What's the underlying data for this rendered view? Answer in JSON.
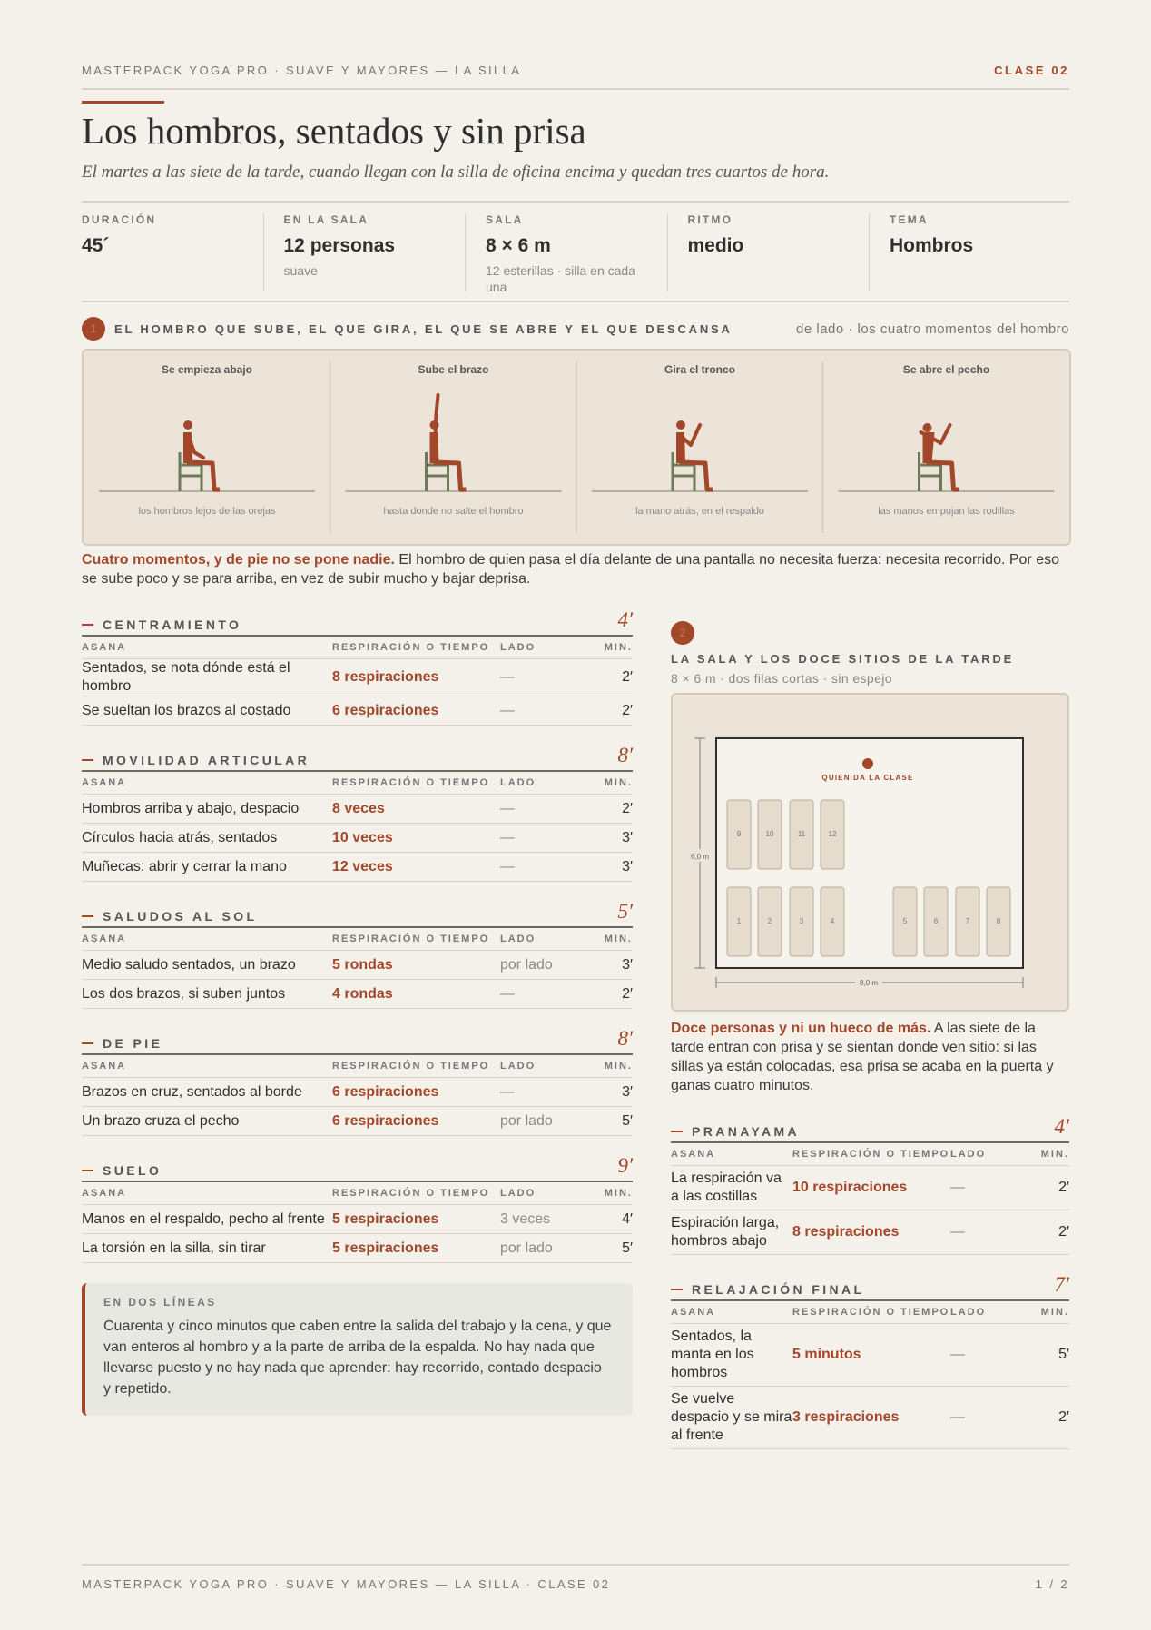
{
  "header": {
    "brand": "MASTERPACK YOGA PRO · SUAVE Y MAYORES — LA SILLA",
    "clase": "CLASE 02",
    "title": "Los hombros, sentados y sin prisa",
    "subtitle": "El martes a las siete de la tarde, cuando llegan con la silla de oficina encima y quedan tres cuartos de hora."
  },
  "stats": [
    {
      "label": "DURACIÓN",
      "value": "45´"
    },
    {
      "label": "EN LA SALA",
      "value": "12 personas",
      "note": "suave"
    },
    {
      "label": "SALA",
      "value": "8 × 6 m",
      "note": "12 esterillas · silla en cada una"
    },
    {
      "label": "RITMO",
      "value": "medio"
    },
    {
      "label": "TEMA",
      "value": "Hombros"
    }
  ],
  "section1": {
    "number": "1",
    "title": "EL HOMBRO QUE SUBE, EL QUE GIRA, EL QUE SE ABRE Y EL QUE DESCANSA",
    "aside": "de lado · los cuatro momentos del hombro",
    "panels": [
      {
        "heading": "Se empieza abajo",
        "caption": "los hombros lejos de las orejas"
      },
      {
        "heading": "Sube el brazo",
        "caption": "hasta donde no salte el hombro"
      },
      {
        "heading": "Gira el tronco",
        "caption": "la mano atrás, en el respaldo"
      },
      {
        "heading": "Se abre el pecho",
        "caption": "las manos empujan las rodillas"
      }
    ],
    "lead": "Cuatro momentos, y de pie no se pone nadie.",
    "text": "El hombro de quien pasa el día delante de una pantalla no necesita fuerza: necesita recorrido. Por eso se sube poco y se para arriba, en vez de subir mucho y bajar deprisa."
  },
  "table_headers": [
    "ASANA",
    "RESPIRACIÓN O TIEMPO",
    "LADO",
    "MIN."
  ],
  "sessions_left": [
    {
      "name": "CENTRAMIENTO",
      "minutes": "4′",
      "rows": [
        [
          "Sentados, se nota dónde está el hombro",
          "8 respiraciones",
          "—",
          "2′"
        ],
        [
          "Se sueltan los brazos al costado",
          "6 respiraciones",
          "—",
          "2′"
        ]
      ]
    },
    {
      "name": "MOVILIDAD ARTICULAR",
      "minutes": "8′",
      "rows": [
        [
          "Hombros arriba y abajo, despacio",
          "8 veces",
          "—",
          "2′"
        ],
        [
          "Círculos hacia atrás, sentados",
          "10 veces",
          "—",
          "3′"
        ],
        [
          "Muñecas: abrir y cerrar la mano",
          "12 veces",
          "—",
          "3′"
        ]
      ]
    },
    {
      "name": "SALUDOS AL SOL",
      "minutes": "5′",
      "rows": [
        [
          "Medio saludo sentados, un brazo",
          "5 rondas",
          "por lado",
          "3′"
        ],
        [
          "Los dos brazos, si suben juntos",
          "4 rondas",
          "—",
          "2′"
        ]
      ]
    },
    {
      "name": "DE PIE",
      "minutes": "8′",
      "rows": [
        [
          "Brazos en cruz, sentados al borde",
          "6 respiraciones",
          "—",
          "3′"
        ],
        [
          "Un brazo cruza el pecho",
          "6 respiraciones",
          "por lado",
          "5′"
        ]
      ]
    },
    {
      "name": "SUELO",
      "minutes": "9′",
      "rows": [
        [
          "Manos en el respaldo, pecho al frente",
          "5 respiraciones",
          "3 veces",
          "4′"
        ],
        [
          "La torsión en la silla, sin tirar",
          "5 respiraciones",
          "por lado",
          "5′"
        ]
      ]
    }
  ],
  "note": {
    "label": "EN DOS LÍNEAS",
    "text": "Cuarenta y cinco minutos que caben entre la salida del trabajo y la cena, y que van enteros al hombro y a la parte de arriba de la espalda. No hay nada que llevarse puesto y no hay nada que aprender: hay recorrido, contado despacio y repetido."
  },
  "section2": {
    "number": "2",
    "title": "LA SALA Y LOS DOCE SITIOS DE LA TARDE",
    "subtitle": "8 × 6 m · dos filas cortas · sin espejo",
    "room": {
      "teacher": "QUIEN DA LA CLASE",
      "seats": [
        "1",
        "2",
        "3",
        "4",
        "5",
        "6",
        "7",
        "8",
        "9",
        "10",
        "11",
        "12"
      ],
      "height": "6,0 m",
      "width": "8,0 m"
    },
    "lead": "Doce personas y ni un hueco de más.",
    "text": "A las siete de la tarde entran con prisa y se sientan donde ven sitio: si las sillas ya están colocadas, esa prisa se acaba en la puerta y ganas cuatro minutos."
  },
  "sessions_right": [
    {
      "name": "PRANAYAMA",
      "minutes": "4′",
      "rows": [
        [
          "La respiración va a las costillas",
          "10 respiraciones",
          "—",
          "2′"
        ],
        [
          "Espiración larga, hombros abajo",
          "8 respiraciones",
          "—",
          "2′"
        ]
      ]
    },
    {
      "name": "RELAJACIÓN FINAL",
      "minutes": "7′",
      "rows": [
        [
          "Sentados, la manta en los hombros",
          "5 minutos",
          "—",
          "5′"
        ],
        [
          "Se vuelve despacio y se mira al frente",
          "3 respiraciones",
          "—",
          "2′"
        ]
      ]
    }
  ],
  "footer": {
    "left": "MASTERPACK YOGA PRO · SUAVE Y MAYORES — LA SILLA · CLASE 02",
    "page": "1 / 2"
  }
}
